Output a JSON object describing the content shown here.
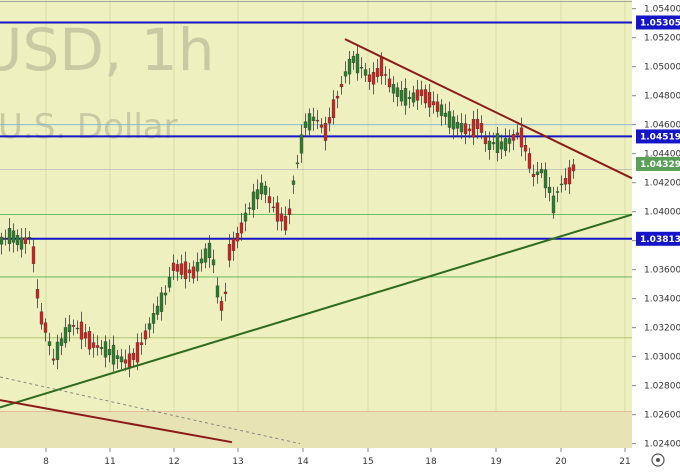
{
  "chart_data": {
    "type": "candlestick",
    "watermark": {
      "symbol": "USD, 1h",
      "description": "U.S. Dollar"
    },
    "x_labels": [
      "8",
      "11",
      "12",
      "13",
      "14",
      "15",
      "18",
      "19",
      "20",
      "21"
    ],
    "y_ticks": [
      "1.05400",
      "1.05200",
      "1.05000",
      "1.04800",
      "1.04600",
      "1.04400",
      "1.04200",
      "1.04000",
      "1.03800",
      "1.03600",
      "1.03400",
      "1.03200",
      "1.03000",
      "1.02800",
      "1.02600",
      "1.02400"
    ],
    "ylim": [
      1.0237,
      1.0546
    ],
    "price_levels": [
      {
        "label": "1.05305",
        "value": 1.05305,
        "color": "#1515c8"
      },
      {
        "label": "1.04519",
        "value": 1.04519,
        "color": "#1515c8"
      },
      {
        "label": "1.03813",
        "value": 1.03813,
        "color": "#1515c8"
      }
    ],
    "current_price": {
      "label": "1.04329",
      "value": 1.04329,
      "color": "#5aa05a"
    },
    "colors": {
      "up": "#2e7d32",
      "down": "#c62828",
      "support": "#2e6b1f",
      "resistance": "#8b1a1a"
    }
  }
}
